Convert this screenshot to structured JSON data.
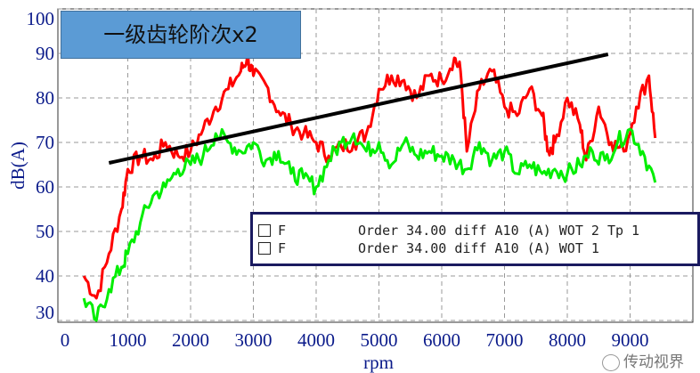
{
  "chart_data": {
    "type": "line",
    "title": "一级齿轮阶次x2",
    "xlabel": "rpm",
    "ylabel": "dB(A)",
    "xlim": [
      0,
      9400
    ],
    "ylim": [
      29.6,
      100
    ],
    "xticks": [
      0,
      1000,
      2000,
      3000,
      4000,
      5000,
      6000,
      7000,
      8000,
      9000
    ],
    "xtick_labels": [
      "0",
      "1000",
      "2000",
      "3000",
      "4000",
      "5000",
      "6000",
      "7000",
      "8000",
      "9000"
    ],
    "yticks": [
      30,
      40,
      50,
      60,
      70,
      80,
      90,
      100
    ],
    "ytick_labels": [
      "30",
      "40",
      "50",
      "60",
      "70",
      "80",
      "90",
      "100"
    ],
    "grid": true,
    "legend_placement": "lower-right",
    "series": [
      {
        "name": "Order 34.00 diff A10 (A) WOT 2 Tp 1",
        "label": "F",
        "color": "#ff0000",
        "x": [
          300,
          500,
          700,
          900,
          1000,
          1200,
          1400,
          1600,
          1800,
          2000,
          2200,
          2400,
          2600,
          2800,
          2900,
          3000,
          3200,
          3400,
          3600,
          3800,
          4000,
          4200,
          4400,
          4600,
          4800,
          5000,
          5200,
          5400,
          5600,
          5800,
          6000,
          6200,
          6300,
          6400,
          6600,
          6800,
          7000,
          7200,
          7400,
          7600,
          7700,
          7800,
          8000,
          8200,
          8300,
          8500,
          8700,
          8900,
          9100,
          9300,
          9400
        ],
        "y": [
          40,
          35,
          45,
          55,
          64,
          67,
          66,
          70,
          67,
          68,
          73,
          78,
          82,
          86,
          89,
          85,
          83,
          77,
          74,
          72,
          70,
          67,
          69,
          70,
          72,
          82,
          85,
          84,
          80,
          85,
          84,
          89,
          86,
          68,
          82,
          86,
          78,
          76,
          82,
          76,
          68,
          70,
          80,
          74,
          66,
          78,
          70,
          68,
          78,
          85,
          71
        ]
      },
      {
        "name": "Order 34.00 diff A10 (A) WOT 1",
        "label": "F",
        "color": "#00ee00",
        "x": [
          300,
          500,
          700,
          900,
          1000,
          1200,
          1400,
          1600,
          1800,
          2000,
          2200,
          2400,
          2600,
          2800,
          3000,
          3200,
          3400,
          3600,
          3800,
          4000,
          4200,
          4400,
          4600,
          4800,
          5000,
          5200,
          5400,
          5600,
          5800,
          6000,
          6200,
          6400,
          6600,
          6800,
          7000,
          7200,
          7400,
          7600,
          7800,
          8000,
          8200,
          8400,
          8600,
          8800,
          9000,
          9200,
          9400
        ],
        "y": [
          35,
          30,
          37,
          42,
          45,
          52,
          58,
          60,
          64,
          65,
          67,
          72,
          70,
          68,
          70,
          66,
          68,
          63,
          62,
          60,
          66,
          70,
          72,
          68,
          70,
          65,
          70,
          67,
          68,
          67,
          66,
          64,
          70,
          66,
          68,
          63,
          65,
          63,
          64,
          63,
          65,
          68,
          66,
          70,
          73,
          68,
          61
        ]
      },
      {
        "name": "",
        "color": "#000000",
        "x": [
          700,
          8650
        ],
        "y": [
          65.4,
          89.8
        ]
      }
    ]
  },
  "legend": [
    {
      "label": "F",
      "name": "Order 34.00 diff A10 (A) WOT 2 Tp 1"
    },
    {
      "label": "F",
      "name": "Order 34.00 diff A10 (A) WOT 1"
    }
  ],
  "watermark": "传动视界"
}
